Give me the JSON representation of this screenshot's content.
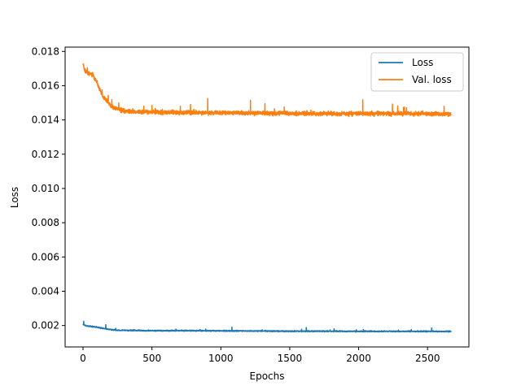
{
  "chart_data": {
    "type": "line",
    "title": "",
    "xlabel": "Epochs",
    "ylabel": "Loss",
    "xlim": [
      -130,
      2800
    ],
    "ylim": [
      0.00075,
      0.01825
    ],
    "xticks": [
      0,
      500,
      1000,
      1500,
      2000,
      2500
    ],
    "xtick_labels": [
      "0",
      "500",
      "1000",
      "1500",
      "2000",
      "2500"
    ],
    "yticks": [
      0.002,
      0.004,
      0.006,
      0.008,
      0.01,
      0.012,
      0.014,
      0.016,
      0.018
    ],
    "ytick_labels": [
      "0.002",
      "0.004",
      "0.006",
      "0.008",
      "0.010",
      "0.012",
      "0.014",
      "0.016",
      "0.018"
    ],
    "grid": false,
    "legend_position": "upper right",
    "epochs": 2670,
    "series": [
      {
        "name": "Loss",
        "color": "#1f77b4",
        "x": [
          0,
          25,
          50,
          75,
          100,
          125,
          150,
          175,
          200,
          250,
          300,
          400,
          500,
          750,
          1000,
          1250,
          1500,
          1750,
          2000,
          2250,
          2500,
          2670
        ],
        "values": [
          0.00205,
          0.00198,
          0.00196,
          0.00193,
          0.0019,
          0.00186,
          0.00182,
          0.0018,
          0.00176,
          0.00173,
          0.00172,
          0.00171,
          0.0017,
          0.0017,
          0.00169,
          0.00168,
          0.00167,
          0.00167,
          0.00166,
          0.00166,
          0.00166,
          0.00165
        ],
        "noise": 5e-05,
        "spikes": [
          [
            5,
            0.00225
          ],
          [
            165,
            0.00205
          ],
          [
            1080,
            0.0019
          ],
          [
            1620,
            0.00188
          ],
          [
            2530,
            0.00185
          ]
        ]
      },
      {
        "name": "Val. loss",
        "color": "#ff7f0e",
        "x": [
          0,
          10,
          25,
          50,
          75,
          100,
          125,
          150,
          175,
          200,
          250,
          300,
          400,
          500,
          750,
          1000,
          1250,
          1500,
          1750,
          2000,
          2250,
          2500,
          2670
        ],
        "values": [
          0.0173,
          0.0169,
          0.0168,
          0.0167,
          0.0166,
          0.0162,
          0.0157,
          0.0153,
          0.0151,
          0.0148,
          0.01465,
          0.0145,
          0.01448,
          0.01445,
          0.01443,
          0.01442,
          0.0144,
          0.01438,
          0.01437,
          0.01436,
          0.01437,
          0.01437,
          0.01432
        ],
        "noise": 0.00018,
        "spikes": [
          [
            905,
            0.01525
          ],
          [
            1215,
            0.01515
          ],
          [
            2030,
            0.01518
          ],
          [
            500,
            0.01485
          ],
          [
            1320,
            0.01495
          ],
          [
            780,
            0.0149
          ],
          [
            2620,
            0.0148
          ]
        ]
      }
    ]
  }
}
